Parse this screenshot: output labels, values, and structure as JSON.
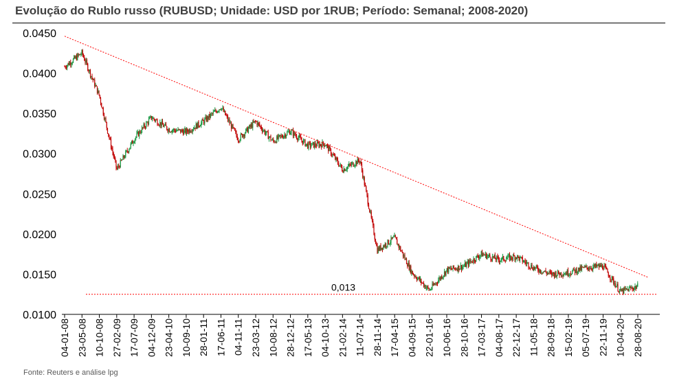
{
  "chart_data": {
    "type": "candlestick",
    "title": "Evolução do Rublo russo (RUBUSD; Unidade: USD por 1RUB; Período: Semanal; 2008-2020)",
    "source": "Fonte: Reuters e análise lpg",
    "ylim": [
      0.01,
      0.045
    ],
    "y_ticks": [
      "0.0100",
      "0.0150",
      "0.0200",
      "0.0250",
      "0.0300",
      "0.0350",
      "0.0400",
      "0.0450"
    ],
    "x_ticks": [
      "04-01-08",
      "23-05-08",
      "10-10-08",
      "27-02-09",
      "17-07-09",
      "04-12-09",
      "23-04-10",
      "10-09-10",
      "28-01-11",
      "17-06-11",
      "04-11-11",
      "23-03-12",
      "10-08-12",
      "28-12-12",
      "17-05-13",
      "04-10-13",
      "21-02-14",
      "11-07-14",
      "28-11-14",
      "17-04-15",
      "04-09-15",
      "22-01-16",
      "10-06-16",
      "28-10-16",
      "17-03-17",
      "04-08-17",
      "22-12-17",
      "11-05-18",
      "28-09-18",
      "15-02-19",
      "05-07-19",
      "22-11-19",
      "10-04-20",
      "28-08-20"
    ],
    "series": [
      {
        "x": [
          "04-01-08",
          "23-05-08",
          "10-10-08",
          "27-02-09",
          "17-07-09",
          "04-12-09",
          "23-04-10",
          "10-09-10",
          "28-01-11",
          "17-06-11",
          "04-11-11",
          "23-03-12",
          "10-08-12",
          "28-12-12",
          "17-05-13",
          "04-10-13",
          "21-02-14",
          "11-07-14",
          "28-11-14",
          "17-04-15",
          "04-09-15",
          "22-01-16",
          "10-06-16",
          "28-10-16",
          "17-03-17",
          "04-08-17",
          "22-12-17",
          "11-05-18",
          "28-09-18",
          "15-02-19",
          "05-07-19",
          "22-11-19",
          "10-04-20",
          "28-08-20"
        ],
        "values": [
          0.0408,
          0.0425,
          0.0372,
          0.028,
          0.0318,
          0.0345,
          0.033,
          0.0327,
          0.034,
          0.0358,
          0.0318,
          0.034,
          0.0315,
          0.0328,
          0.031,
          0.0312,
          0.028,
          0.0292,
          0.018,
          0.0195,
          0.0152,
          0.013,
          0.0155,
          0.016,
          0.0175,
          0.0168,
          0.0172,
          0.0158,
          0.015,
          0.0152,
          0.0158,
          0.016,
          0.0128,
          0.0135
        ]
      }
    ],
    "trendline": {
      "from": [
        "04-01-08",
        0.0446
      ],
      "to": [
        "28-08-20",
        0.0146
      ]
    },
    "support_line": {
      "value": 0.0125
    },
    "annotation": "0,013",
    "colors": {
      "up": "#1a9641",
      "down": "#c00000",
      "trend": "#ff0000",
      "grid": "#000000"
    }
  }
}
